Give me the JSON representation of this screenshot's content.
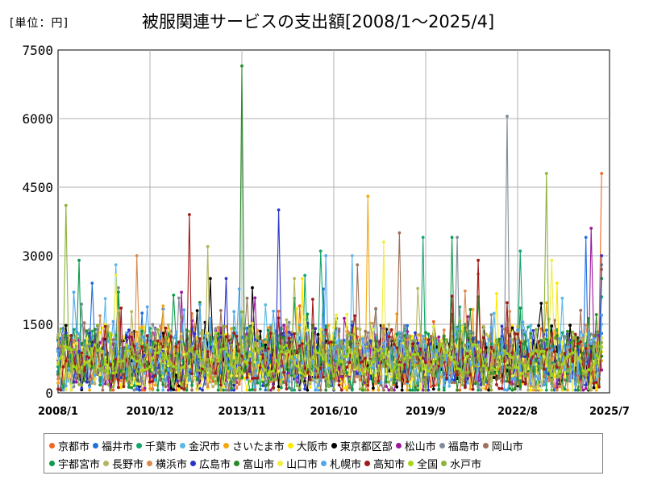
{
  "unit_label": "[単位：円]",
  "chart_data": {
    "type": "line",
    "title": "被服関連サービスの支出額[2008/1～2025/4]",
    "xlabel": "",
    "ylabel": "円",
    "x_range": [
      "2008/1",
      "2025/7"
    ],
    "ylim": [
      0,
      7500
    ],
    "yticks": [
      "0",
      "1500",
      "3000",
      "4500",
      "6000",
      "7500"
    ],
    "xticks": [
      "2008/1",
      "2010/12",
      "2013/11",
      "2016/10",
      "2019/9",
      "2022/8",
      "2025/7"
    ],
    "grid": true,
    "legend_position": "bottom",
    "n_points": 208,
    "series": [
      {
        "name": "京都市",
        "color": "#f26522",
        "last": 4800,
        "peaks": [
          [
            92,
            1900
          ],
          [
            207,
            4800
          ]
        ]
      },
      {
        "name": "福井市",
        "color": "#1f6fe0",
        "last": 1300,
        "peaks": [
          [
            13,
            2400
          ],
          [
            201,
            3400
          ]
        ]
      },
      {
        "name": "千葉市",
        "color": "#16a56c",
        "last": 2100,
        "peaks": [
          [
            100,
            3100
          ],
          [
            176,
            3100
          ],
          [
            139,
            3400
          ]
        ]
      },
      {
        "name": "金沢市",
        "color": "#5bb8e8",
        "last": 1500,
        "peaks": [
          [
            22,
            2800
          ],
          [
            112,
            3000
          ]
        ]
      },
      {
        "name": "さいたま市",
        "color": "#f5a614",
        "last": 700,
        "peaks": [
          [
            118,
            4300
          ],
          [
            40,
            1900
          ]
        ]
      },
      {
        "name": "大阪市",
        "color": "#ffe800",
        "last": 900,
        "peaks": [
          [
            93,
            2500
          ],
          [
            190,
            2400
          ]
        ]
      },
      {
        "name": "東京都区部",
        "color": "#000000",
        "last": 1200,
        "peaks": [
          [
            74,
            2300
          ],
          [
            58,
            2500
          ]
        ]
      },
      {
        "name": "松山市",
        "color": "#9c179e",
        "last": 500,
        "peaks": [
          [
            203,
            3600
          ],
          [
            47,
            2200
          ]
        ]
      },
      {
        "name": "福島市",
        "color": "#7f8c98",
        "last": 2800,
        "peaks": [
          [
            171,
            6050
          ],
          [
            152,
            3400
          ]
        ]
      },
      {
        "name": "岡山市",
        "color": "#a0705a",
        "last": 2700,
        "peaks": [
          [
            130,
            3500
          ],
          [
            114,
            2800
          ]
        ]
      },
      {
        "name": "宇都宮市",
        "color": "#0e9a4a",
        "last": 2500,
        "peaks": [
          [
            8,
            2900
          ],
          [
            150,
            3400
          ]
        ]
      },
      {
        "name": "長野市",
        "color": "#b5b55e",
        "last": 1000,
        "peaks": [
          [
            57,
            3200
          ],
          [
            90,
            2500
          ]
        ]
      },
      {
        "name": "横浜市",
        "color": "#d98a4c",
        "last": 1100,
        "peaks": [
          [
            30,
            3000
          ],
          [
            160,
            2600
          ]
        ]
      },
      {
        "name": "広島市",
        "color": "#2a35c9",
        "last": 3000,
        "peaks": [
          [
            84,
            4000
          ],
          [
            64,
            2500
          ]
        ]
      },
      {
        "name": "富山市",
        "color": "#2a8a2a",
        "last": 800,
        "peaks": [
          [
            70,
            7150
          ],
          [
            160,
            2100
          ]
        ]
      },
      {
        "name": "山口市",
        "color": "#f0ee40",
        "last": 1200,
        "peaks": [
          [
            124,
            3300
          ],
          [
            188,
            2900
          ]
        ]
      },
      {
        "name": "札幌市",
        "color": "#53a6ee",
        "last": 1700,
        "peaks": [
          [
            102,
            3000
          ],
          [
            6,
            2200
          ]
        ]
      },
      {
        "name": "高知市",
        "color": "#a11a1a",
        "last": 1000,
        "peaks": [
          [
            50,
            3900
          ],
          [
            160,
            2900
          ]
        ]
      },
      {
        "name": "全国",
        "color": "#a6d61a",
        "last": 1000,
        "peaks": [
          [
            20,
            1300
          ],
          [
            60,
            1300
          ]
        ]
      },
      {
        "name": "水戸市",
        "color": "#8db33a",
        "last": 1100,
        "peaks": [
          [
            3,
            4100
          ],
          [
            186,
            4800
          ]
        ]
      }
    ]
  }
}
